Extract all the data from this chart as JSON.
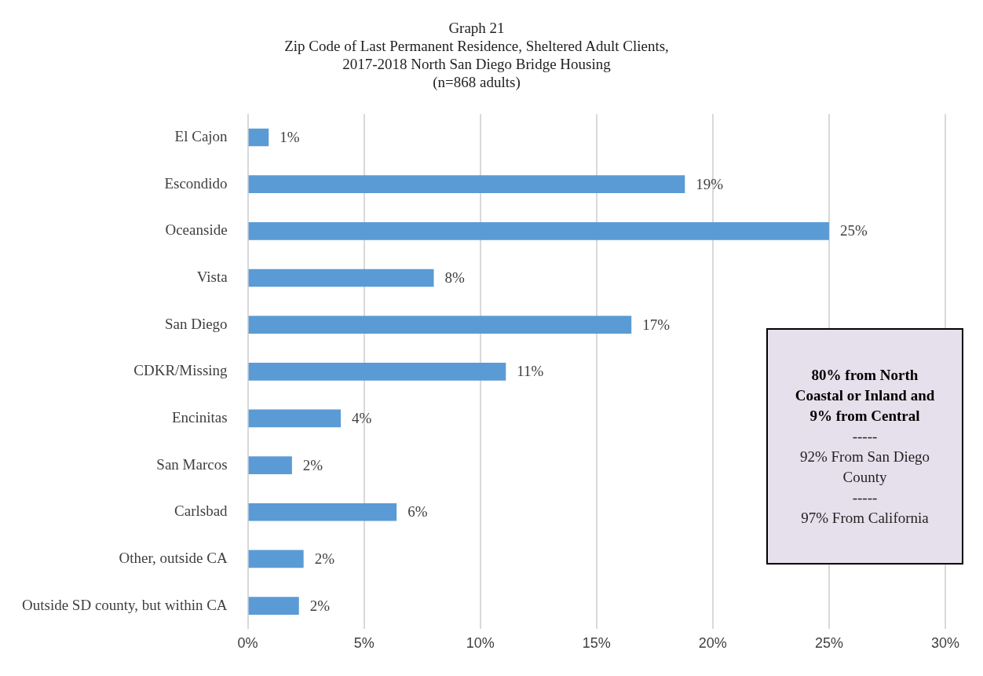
{
  "chart_data": {
    "type": "bar",
    "orientation": "horizontal",
    "title": "Graph 21",
    "subtitle": "Zip Code of Last Permanent Residence, Sheltered Adult Clients,\n2017-2018 North San Diego Bridge Housing\n(n=868 adults)",
    "categories": [
      "El Cajon",
      "Escondido",
      "Oceanside",
      "Vista",
      "San Diego",
      "CDKR/Missing",
      "Encinitas",
      "San Marcos",
      "Carlsbad",
      "Other, outside CA",
      "Outside SD county, but within CA"
    ],
    "values": [
      0.9,
      18.8,
      25.0,
      8.0,
      16.5,
      11.1,
      4.0,
      1.9,
      6.4,
      2.4,
      2.2
    ],
    "value_labels": [
      "1%",
      "19%",
      "25%",
      "8%",
      "17%",
      "11%",
      "4%",
      "2%",
      "6%",
      "2%",
      "2%"
    ],
    "color": "#5b9bd5",
    "xlim": [
      0,
      30
    ],
    "xticks": [
      {
        "value": 0,
        "label": "0%"
      },
      {
        "value": 5,
        "label": "5%"
      },
      {
        "value": 10,
        "label": "10%"
      },
      {
        "value": 15,
        "label": "15%"
      },
      {
        "value": 20,
        "label": "20%"
      },
      {
        "value": 25,
        "label": "25%"
      },
      {
        "value": 30,
        "label": "30%"
      }
    ],
    "grid": "x",
    "legend": false,
    "annotations": [
      "80% from North Coastal or Inland and 9% from Central",
      "-----",
      "92% From San Diego County",
      "-----",
      "97% From California"
    ]
  }
}
